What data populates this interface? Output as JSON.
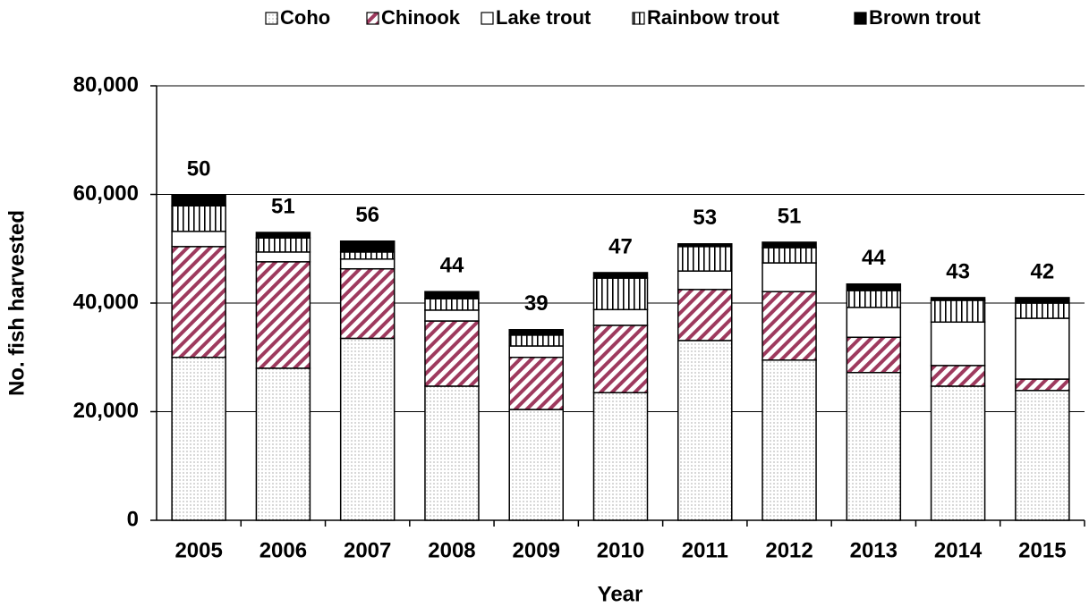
{
  "chart_data": {
    "type": "stacked_bar",
    "y_label": "No. fish harvested",
    "x_label": "Year",
    "categories": [
      "2005",
      "2006",
      "2007",
      "2008",
      "2009",
      "2010",
      "2011",
      "2012",
      "2013",
      "2014",
      "2015"
    ],
    "series": [
      {
        "name": "Coho",
        "color": "#ffffff",
        "pattern": "dots",
        "values": [
          30000,
          28000,
          33500,
          24700,
          20400,
          23500,
          33100,
          29500,
          27200,
          24700,
          23900
        ]
      },
      {
        "name": "Chinook",
        "color": "#9e3a5e",
        "pattern": "diagonal",
        "values": [
          20400,
          19600,
          12800,
          12000,
          9600,
          12400,
          9400,
          12600,
          6500,
          3800,
          2100
        ]
      },
      {
        "name": "Lake trout",
        "color": "#ffffff",
        "pattern": "solid",
        "values": [
          2800,
          1800,
          1800,
          2000,
          2100,
          2900,
          3400,
          5300,
          5500,
          8000,
          11200
        ]
      },
      {
        "name": "Rainbow trout",
        "color": "#000000",
        "pattern": "vertical",
        "values": [
          4700,
          2600,
          1300,
          2100,
          2000,
          5800,
          4500,
          2800,
          3100,
          4000,
          2800
        ]
      },
      {
        "name": "Brown trout",
        "color": "#000000",
        "pattern": "solid",
        "values": [
          2000,
          1000,
          2000,
          1300,
          1000,
          1000,
          500,
          1000,
          1200,
          500,
          1000
        ]
      }
    ],
    "bar_labels": [
      50,
      51,
      56,
      44,
      39,
      47,
      53,
      51,
      44,
      43,
      42
    ],
    "ylim": [
      0,
      80000
    ],
    "yticks": [
      0,
      {
        "value": 20000,
        "label": "20,000"
      },
      {
        "value": 40000,
        "label": "40,000"
      },
      {
        "value": 60000,
        "label": "60,000"
      },
      {
        "value": 80000,
        "label": "80,000"
      }
    ],
    "grid": true,
    "legend": "top"
  }
}
